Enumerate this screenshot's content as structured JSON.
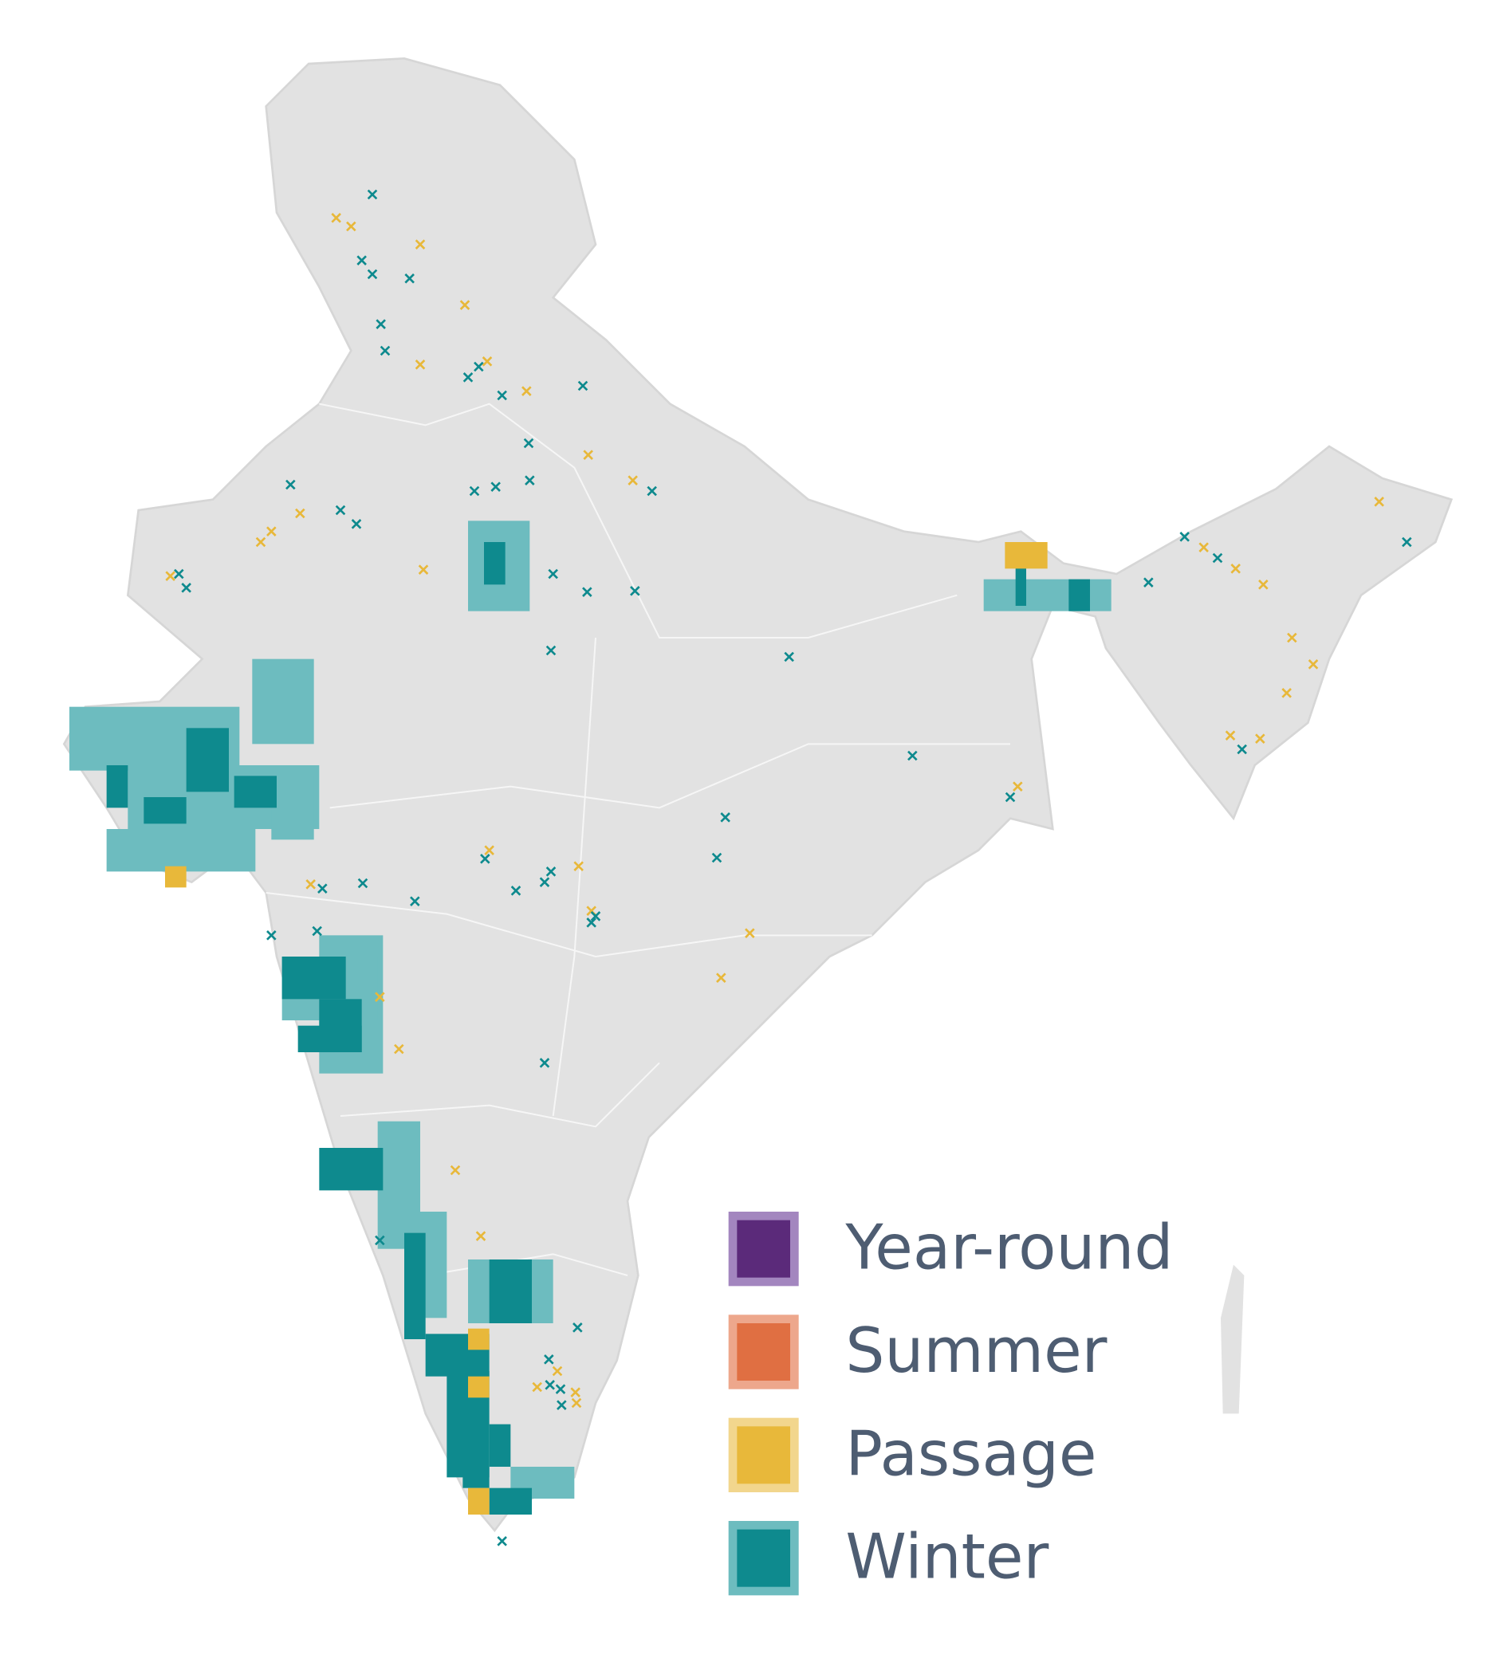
{
  "legend": {
    "items": [
      {
        "name": "Year-round",
        "color": "#5b2a7a",
        "border_color": "#a386bf"
      },
      {
        "name": "Summer",
        "color": "#e06f42",
        "border_color": "#eda78c"
      },
      {
        "name": "Passage",
        "color": "#e8b83a",
        "border_color": "#f2d68d"
      },
      {
        "name": "Winter",
        "color": "#0e8a8e",
        "border_color": "#6dbcbf"
      }
    ]
  }
}
